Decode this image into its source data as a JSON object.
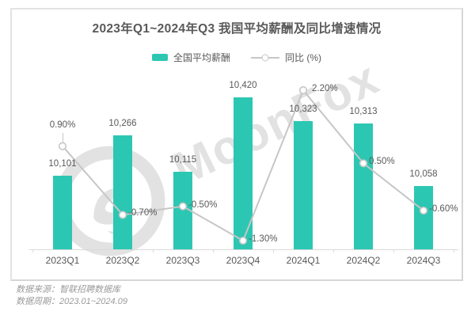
{
  "page": {
    "title": "2023年Q1~2024年Q3 我国平均薪酬及同比增速情况"
  },
  "legend": {
    "items": [
      {
        "label": "全国平均薪酬"
      },
      {
        "label": "同比 (%)"
      }
    ]
  },
  "watermark": {
    "brand": "MoonFox"
  },
  "footer": {
    "source": "数据来源：智联招聘数据库",
    "period": "数据周期：2023.01~2024.09"
  },
  "colors": {
    "bar": "#2cc7b2",
    "line": "#c6c6c6",
    "label_text": "#595959",
    "axis": "#dadada",
    "watermark": "#e2e2e2",
    "footer_text": "#9b9b9b"
  },
  "chart_data": {
    "type": "bar+line",
    "title": "2023年Q1~2024年Q3 我国平均薪酬及同比增速情况",
    "categories": [
      "2023Q1",
      "2023Q2",
      "2023Q3",
      "2023Q4",
      "2024Q1",
      "2024Q2",
      "2024Q3"
    ],
    "series": [
      {
        "name": "全国平均薪酬",
        "type": "bar",
        "values": [
          10101,
          10266,
          10115,
          10420,
          10323,
          10313,
          10058
        ],
        "labels": [
          "10,101",
          "10,266",
          "10,115",
          "10,420",
          "10,323",
          "10,313",
          "10,058"
        ]
      },
      {
        "name": "同比 (%)",
        "type": "line",
        "values": [
          0.9,
          -0.7,
          -0.5,
          -1.3,
          2.2,
          0.5,
          -0.6
        ],
        "labels": [
          "0.90%",
          "-0.70%",
          "-0.50%",
          "-1.30%",
          "2.20%",
          "0.50%",
          "-0.60%"
        ]
      }
    ],
    "bar_axis": {
      "implied_min": 9800,
      "implied_max": 11000,
      "shown": false
    },
    "pct_axis": {
      "min": -1.5,
      "max": 2.4,
      "shown": false
    },
    "grid": false,
    "legend_position": "top",
    "value_labels_shown": true
  }
}
